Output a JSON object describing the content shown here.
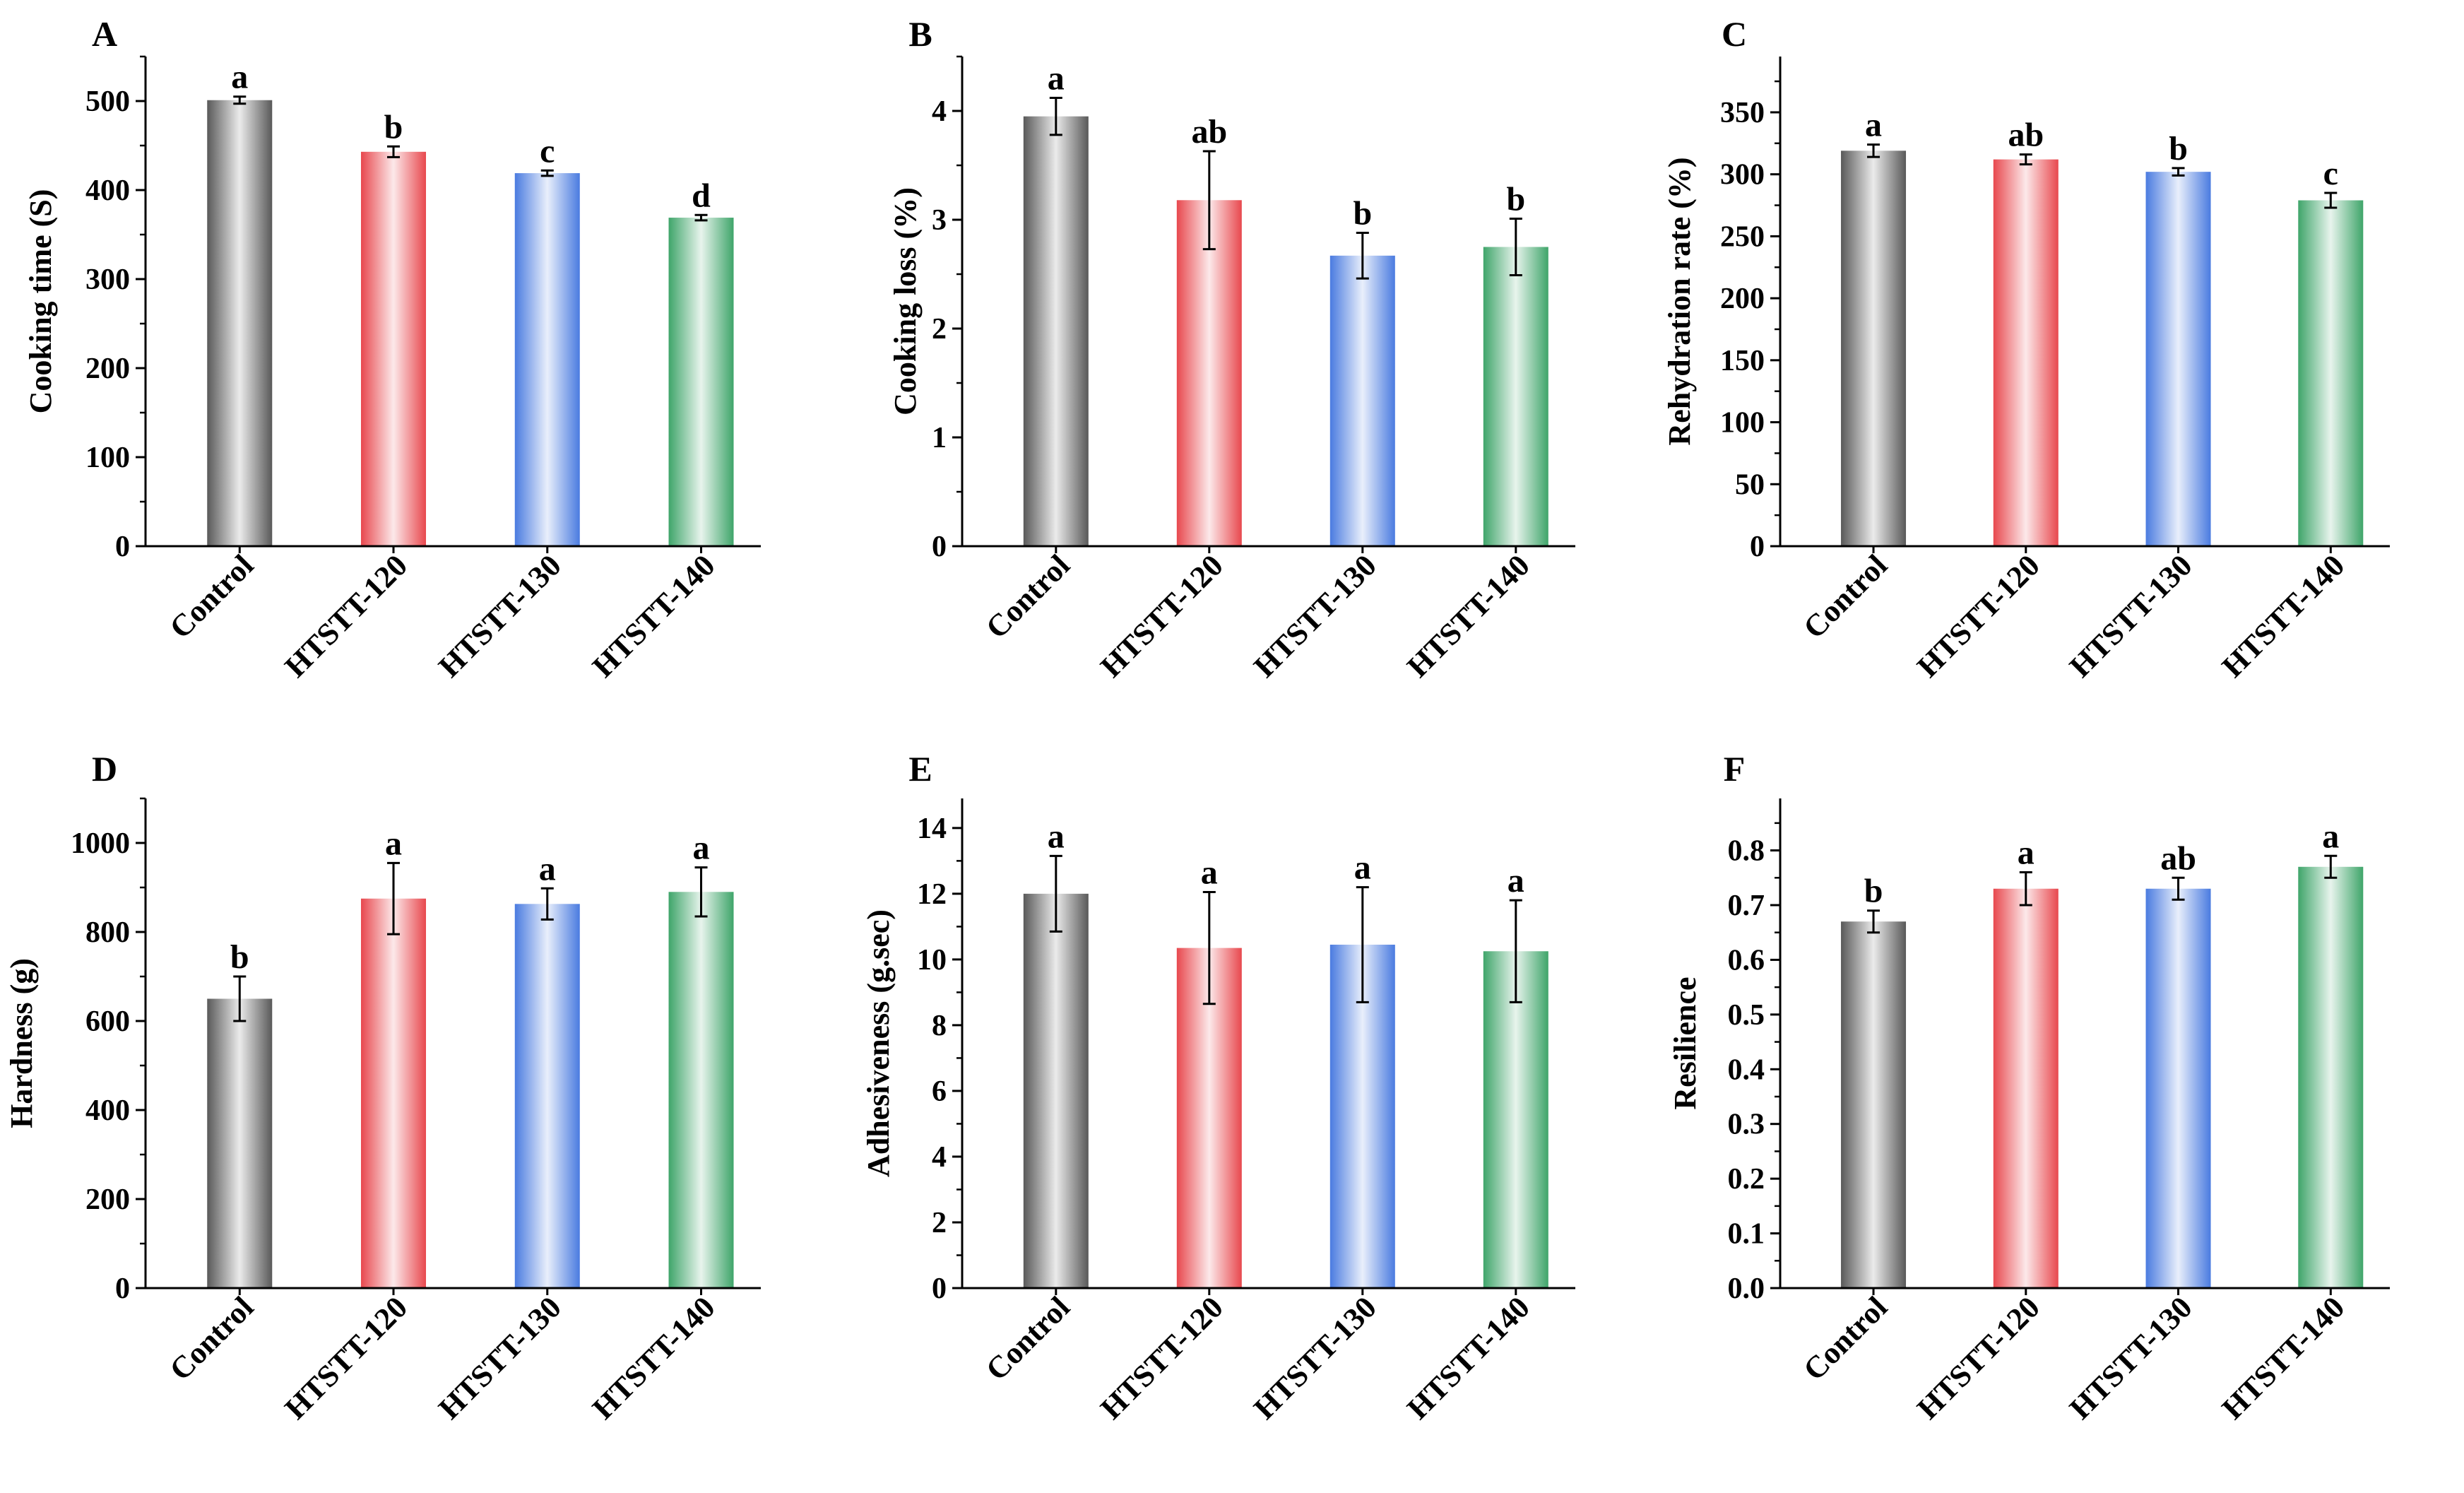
{
  "figure": {
    "categories": [
      "Control",
      "HTSTT-120",
      "HTSTT-130",
      "HTSTT-140"
    ],
    "bar_colors": [
      "#595959",
      "#e8484e",
      "#4a7be0",
      "#3fa56a"
    ]
  },
  "chart_data": [
    {
      "type": "bar",
      "panel": "A",
      "ylabel": "Cooking time (S)",
      "categories": [
        "Control",
        "HTSTT-120",
        "HTSTT-130",
        "HTSTT-140"
      ],
      "values": [
        501,
        443,
        419,
        369
      ],
      "errors": [
        4,
        6,
        3,
        3
      ],
      "letters": [
        "a",
        "b",
        "c",
        "d"
      ],
      "ylim": [
        0,
        550
      ],
      "yticks": [
        0,
        100,
        200,
        300,
        400,
        500
      ],
      "ytick_labels": [
        "0",
        "100",
        "200",
        "300",
        "400",
        "500"
      ]
    },
    {
      "type": "bar",
      "panel": "B",
      "ylabel": "Cooking loss (%)",
      "categories": [
        "Control",
        "HTSTT-120",
        "HTSTT-130",
        "HTSTT-140"
      ],
      "values": [
        3.95,
        3.18,
        2.67,
        2.75
      ],
      "errors": [
        0.17,
        0.45,
        0.21,
        0.26
      ],
      "letters": [
        "a",
        "ab",
        "b",
        "b"
      ],
      "ylim": [
        0,
        4.5
      ],
      "yticks": [
        0,
        1,
        2,
        3,
        4
      ],
      "ytick_labels": [
        "0",
        "1",
        "2",
        "3",
        "4"
      ]
    },
    {
      "type": "bar",
      "panel": "C",
      "ylabel": "Rehydration rate (%)",
      "categories": [
        "Control",
        "HTSTT-120",
        "HTSTT-130",
        "HTSTT-140"
      ],
      "values": [
        319,
        312,
        302,
        279
      ],
      "errors": [
        5,
        4,
        3,
        6
      ],
      "letters": [
        "a",
        "ab",
        "b",
        "c"
      ],
      "ylim": [
        0,
        395
      ],
      "yticks": [
        0,
        50,
        100,
        150,
        200,
        250,
        300,
        350
      ],
      "ytick_labels": [
        "0",
        "50",
        "100",
        "150",
        "200",
        "250",
        "300",
        "350"
      ]
    },
    {
      "type": "bar",
      "panel": "D",
      "ylabel": "Hardness (g)",
      "categories": [
        "Control",
        "HTSTT-120",
        "HTSTT-130",
        "HTSTT-140"
      ],
      "values": [
        650,
        875,
        863,
        890
      ],
      "errors": [
        50,
        80,
        35,
        55
      ],
      "letters": [
        "b",
        "a",
        "a",
        "a"
      ],
      "ylim": [
        0,
        1100
      ],
      "yticks": [
        0,
        200,
        400,
        600,
        800,
        1000
      ],
      "ytick_labels": [
        "0",
        "200",
        "400",
        "600",
        "800",
        "1000"
      ]
    },
    {
      "type": "bar",
      "panel": "E",
      "ylabel": "Adhesiveness (g.sec)",
      "categories": [
        "Control",
        "HTSTT-120",
        "HTSTT-130",
        "HTSTT-140"
      ],
      "values": [
        12.0,
        10.35,
        10.45,
        10.25
      ],
      "errors": [
        1.15,
        1.7,
        1.75,
        1.55
      ],
      "letters": [
        "a",
        "a",
        "a",
        "a"
      ],
      "ylim": [
        0,
        14.9
      ],
      "yticks": [
        0,
        2,
        4,
        6,
        8,
        10,
        12,
        14
      ],
      "ytick_labels": [
        "0",
        "2",
        "4",
        "6",
        "8",
        "10",
        "12",
        "14"
      ]
    },
    {
      "type": "bar",
      "panel": "F",
      "ylabel": "Resilience",
      "categories": [
        "Control",
        "HTSTT-120",
        "HTSTT-130",
        "HTSTT-140"
      ],
      "values": [
        0.67,
        0.73,
        0.73,
        0.77
      ],
      "errors": [
        0.02,
        0.03,
        0.02,
        0.02
      ],
      "letters": [
        "b",
        "a",
        "ab",
        "a"
      ],
      "ylim": [
        0,
        0.895
      ],
      "yticks": [
        0,
        0.1,
        0.2,
        0.3,
        0.4,
        0.5,
        0.6,
        0.7,
        0.8
      ],
      "ytick_labels": [
        "0.0",
        "0.1",
        "0.2",
        "0.3",
        "0.4",
        "0.5",
        "0.6",
        "0.7",
        "0.8"
      ]
    }
  ]
}
